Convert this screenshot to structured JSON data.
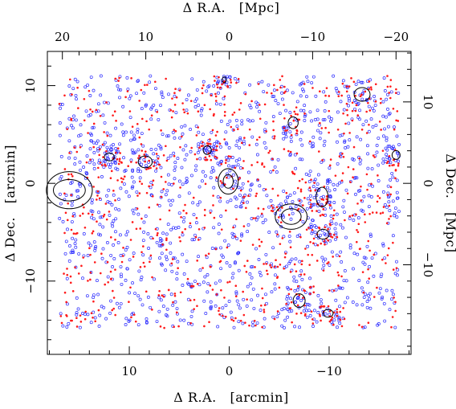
{
  "chart_data": {
    "type": "scatter",
    "axes": {
      "bottom": {
        "label": "Δ R.A.   [arcmin]",
        "range": [
          18.2,
          -18.2
        ],
        "ticks": [
          10,
          0,
          -10
        ],
        "tick_labels": [
          "10",
          "0",
          "−10"
        ],
        "minor_step": 2
      },
      "left": {
        "label": "Δ Dec.   [arcmin]",
        "range": [
          -17.5,
          13.5
        ],
        "ticks": [
          10,
          0,
          -10
        ],
        "tick_labels": [
          "10",
          "0",
          "−10"
        ],
        "minor_step": 2
      },
      "top": {
        "label": "Δ R.A.   [Mpc]",
        "range": [
          21.8,
          -21.8
        ],
        "ticks": [
          20,
          10,
          0,
          -10,
          -20
        ],
        "tick_labels": [
          "20",
          "10",
          "0",
          "−10",
          "−20"
        ],
        "minor_step": 2
      },
      "right": {
        "label": "Δ Dec.   [Mpc]",
        "range": [
          -21.0,
          16.2
        ],
        "ticks": [
          10,
          0,
          -10
        ],
        "tick_labels": [
          "10",
          "0",
          "−10"
        ],
        "minor_step": 2
      }
    },
    "field": {
      "ra_range": [
        17,
        -17
      ],
      "dec_range": [
        -14.8,
        11
      ]
    },
    "series": [
      {
        "color": "#2b2bff",
        "marker": "open-circle",
        "count": 1400
      },
      {
        "color": "#ff1a1a",
        "marker": "filled-dot",
        "count": 900
      }
    ],
    "contours": [
      {
        "ra": 16.0,
        "dec": -0.7,
        "rx": [
          2.3,
          1.6
        ],
        "ry": [
          1.9,
          1.1
        ]
      },
      {
        "ra": 12.0,
        "dec": 2.7,
        "rx": [
          0.5
        ],
        "ry": [
          0.4
        ]
      },
      {
        "ra": 8.4,
        "dec": 2.2,
        "rx": [
          0.7
        ],
        "ry": [
          0.6
        ]
      },
      {
        "ra": 2.2,
        "dec": 3.4,
        "rx": [
          0.4
        ],
        "ry": [
          0.45
        ]
      },
      {
        "ra": 0.1,
        "dec": 0.2,
        "rx": [
          1.0,
          0.5
        ],
        "ry": [
          1.3,
          0.7
        ]
      },
      {
        "ra": -6.2,
        "dec": -3.4,
        "rx": [
          1.6,
          1.0
        ],
        "ry": [
          1.3,
          0.8
        ]
      },
      {
        "ra": -6.4,
        "dec": 6.2,
        "rx": [
          0.5
        ],
        "ry": [
          0.6
        ]
      },
      {
        "ra": -9.3,
        "dec": -1.4,
        "rx": [
          0.6
        ],
        "ry": [
          1.0
        ]
      },
      {
        "ra": -9.4,
        "dec": -5.2,
        "rx": [
          0.6
        ],
        "ry": [
          0.5
        ]
      },
      {
        "ra": -7.0,
        "dec": -12.0,
        "rx": [
          0.6
        ],
        "ry": [
          0.7
        ]
      },
      {
        "ra": -9.9,
        "dec": -13.3,
        "rx": [
          0.5
        ],
        "ry": [
          0.4
        ]
      },
      {
        "ra": -13.3,
        "dec": 9.1,
        "rx": [
          0.8
        ],
        "ry": [
          0.7
        ]
      },
      {
        "ra": -16.7,
        "dec": 2.9,
        "rx": [
          0.4
        ],
        "ry": [
          0.45
        ]
      },
      {
        "ra": 0.5,
        "dec": 10.6,
        "rx": [
          0.2
        ],
        "ry": [
          0.3
        ]
      }
    ],
    "grid": false,
    "legend": "none"
  }
}
